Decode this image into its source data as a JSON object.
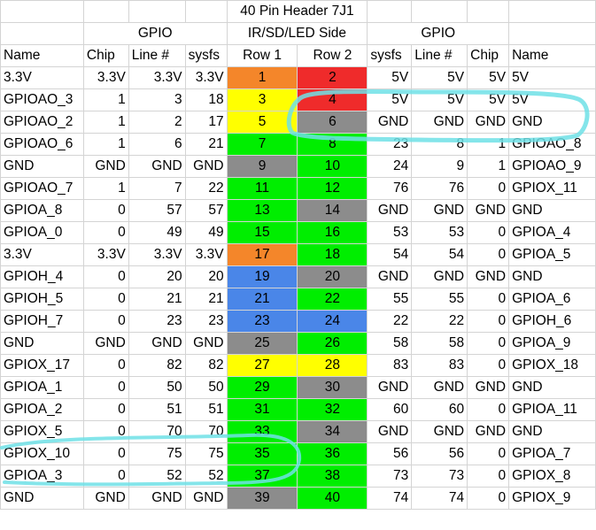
{
  "colors": {
    "orange": "#f4862a",
    "red": "#ef2b2b",
    "yellow": "#ffff00",
    "green": "#00ee00",
    "gray": "#8c8c8c",
    "blue": "#4a86e8",
    "annotation": "#6fe0e6"
  },
  "header": {
    "title": "40 Pin Header 7J1",
    "left_group": "GPIO",
    "middle_group": "IR/SD/LED Side",
    "right_group": "GPIO"
  },
  "columns": [
    "Name",
    "Chip",
    "Line #",
    "sysfs",
    "Row 1",
    "Row 2",
    "sysfs",
    "Line #",
    "Chip",
    "Name"
  ],
  "rows": [
    {
      "left_name": "3.3V",
      "left_chip": "3.3V",
      "left_line": "3.3V",
      "left_sysfs": "3.3V",
      "pin1": "1",
      "pin1_color": "orange",
      "pin2": "2",
      "pin2_color": "red",
      "right_sysfs": "5V",
      "right_line": "5V",
      "right_chip": "5V",
      "right_name": "5V"
    },
    {
      "left_name": "GPIOAO_3",
      "left_chip": "1",
      "left_line": "3",
      "left_sysfs": "18",
      "pin1": "3",
      "pin1_color": "yellow",
      "pin2": "4",
      "pin2_color": "red",
      "right_sysfs": "5V",
      "right_line": "5V",
      "right_chip": "5V",
      "right_name": "5V"
    },
    {
      "left_name": "GPIOAO_2",
      "left_chip": "1",
      "left_line": "2",
      "left_sysfs": "17",
      "pin1": "5",
      "pin1_color": "yellow",
      "pin2": "6",
      "pin2_color": "gray",
      "right_sysfs": "GND",
      "right_line": "GND",
      "right_chip": "GND",
      "right_name": "GND"
    },
    {
      "left_name": "GPIOAO_6",
      "left_chip": "1",
      "left_line": "6",
      "left_sysfs": "21",
      "pin1": "7",
      "pin1_color": "green",
      "pin2": "8",
      "pin2_color": "green",
      "right_sysfs": "23",
      "right_line": "8",
      "right_chip": "1",
      "right_name": "GPIOAO_8"
    },
    {
      "left_name": "GND",
      "left_chip": "GND",
      "left_line": "GND",
      "left_sysfs": "GND",
      "pin1": "9",
      "pin1_color": "gray",
      "pin2": "10",
      "pin2_color": "green",
      "right_sysfs": "24",
      "right_line": "9",
      "right_chip": "1",
      "right_name": "GPIOAO_9"
    },
    {
      "left_name": "GPIOAO_7",
      "left_chip": "1",
      "left_line": "7",
      "left_sysfs": "22",
      "pin1": "11",
      "pin1_color": "green",
      "pin2": "12",
      "pin2_color": "green",
      "right_sysfs": "76",
      "right_line": "76",
      "right_chip": "0",
      "right_name": "GPIOX_11"
    },
    {
      "left_name": "GPIOA_8",
      "left_chip": "0",
      "left_line": "57",
      "left_sysfs": "57",
      "pin1": "13",
      "pin1_color": "green",
      "pin2": "14",
      "pin2_color": "gray",
      "right_sysfs": "GND",
      "right_line": "GND",
      "right_chip": "GND",
      "right_name": "GND"
    },
    {
      "left_name": "GPIOA_0",
      "left_chip": "0",
      "left_line": "49",
      "left_sysfs": "49",
      "pin1": "15",
      "pin1_color": "green",
      "pin2": "16",
      "pin2_color": "green",
      "right_sysfs": "53",
      "right_line": "53",
      "right_chip": "0",
      "right_name": "GPIOA_4"
    },
    {
      "left_name": "3.3V",
      "left_chip": "3.3V",
      "left_line": "3.3V",
      "left_sysfs": "3.3V",
      "pin1": "17",
      "pin1_color": "orange",
      "pin2": "18",
      "pin2_color": "green",
      "right_sysfs": "54",
      "right_line": "54",
      "right_chip": "0",
      "right_name": "GPIOA_5"
    },
    {
      "left_name": "GPIOH_4",
      "left_chip": "0",
      "left_line": "20",
      "left_sysfs": "20",
      "pin1": "19",
      "pin1_color": "blue",
      "pin2": "20",
      "pin2_color": "gray",
      "right_sysfs": "GND",
      "right_line": "GND",
      "right_chip": "GND",
      "right_name": "GND"
    },
    {
      "left_name": "GPIOH_5",
      "left_chip": "0",
      "left_line": "21",
      "left_sysfs": "21",
      "pin1": "21",
      "pin1_color": "blue",
      "pin2": "22",
      "pin2_color": "green",
      "right_sysfs": "55",
      "right_line": "55",
      "right_chip": "0",
      "right_name": "GPIOA_6"
    },
    {
      "left_name": "GPIOH_7",
      "left_chip": "0",
      "left_line": "23",
      "left_sysfs": "23",
      "pin1": "23",
      "pin1_color": "blue",
      "pin2": "24",
      "pin2_color": "blue",
      "right_sysfs": "22",
      "right_line": "22",
      "right_chip": "0",
      "right_name": "GPIOH_6"
    },
    {
      "left_name": "GND",
      "left_chip": "GND",
      "left_line": "GND",
      "left_sysfs": "GND",
      "pin1": "25",
      "pin1_color": "gray",
      "pin2": "26",
      "pin2_color": "green",
      "right_sysfs": "58",
      "right_line": "58",
      "right_chip": "0",
      "right_name": "GPIOA_9"
    },
    {
      "left_name": "GPIOX_17",
      "left_chip": "0",
      "left_line": "82",
      "left_sysfs": "82",
      "pin1": "27",
      "pin1_color": "yellow",
      "pin2": "28",
      "pin2_color": "yellow",
      "right_sysfs": "83",
      "right_line": "83",
      "right_chip": "0",
      "right_name": "GPIOX_18"
    },
    {
      "left_name": "GPIOA_1",
      "left_chip": "0",
      "left_line": "50",
      "left_sysfs": "50",
      "pin1": "29",
      "pin1_color": "green",
      "pin2": "30",
      "pin2_color": "gray",
      "right_sysfs": "GND",
      "right_line": "GND",
      "right_chip": "GND",
      "right_name": "GND"
    },
    {
      "left_name": "GPIOA_2",
      "left_chip": "0",
      "left_line": "51",
      "left_sysfs": "51",
      "pin1": "31",
      "pin1_color": "green",
      "pin2": "32",
      "pin2_color": "green",
      "right_sysfs": "60",
      "right_line": "60",
      "right_chip": "0",
      "right_name": "GPIOA_11"
    },
    {
      "left_name": "GPIOX_5",
      "left_chip": "0",
      "left_line": "70",
      "left_sysfs": "70",
      "pin1": "33",
      "pin1_color": "green",
      "pin2": "34",
      "pin2_color": "gray",
      "right_sysfs": "GND",
      "right_line": "GND",
      "right_chip": "GND",
      "right_name": "GND"
    },
    {
      "left_name": "GPIOX_10",
      "left_chip": "0",
      "left_line": "75",
      "left_sysfs": "75",
      "pin1": "35",
      "pin1_color": "green",
      "pin2": "36",
      "pin2_color": "green",
      "right_sysfs": "56",
      "right_line": "56",
      "right_chip": "0",
      "right_name": "GPIOA_7"
    },
    {
      "left_name": "GPIOA_3",
      "left_chip": "0",
      "left_line": "52",
      "left_sysfs": "52",
      "pin1": "37",
      "pin1_color": "green",
      "pin2": "38",
      "pin2_color": "green",
      "right_sysfs": "73",
      "right_line": "73",
      "right_chip": "0",
      "right_name": "GPIOX_8"
    },
    {
      "left_name": "GND",
      "left_chip": "GND",
      "left_line": "GND",
      "left_sysfs": "GND",
      "pin1": "39",
      "pin1_color": "gray",
      "pin2": "40",
      "pin2_color": "green",
      "right_sysfs": "74",
      "right_line": "74",
      "right_chip": "0",
      "right_name": "GPIOX_9"
    }
  ]
}
